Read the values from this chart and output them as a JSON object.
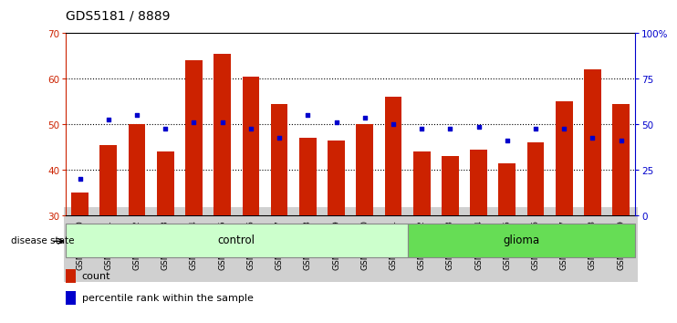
{
  "title": "GDS5181 / 8889",
  "samples": [
    "GSM769920",
    "GSM769921",
    "GSM769922",
    "GSM769923",
    "GSM769924",
    "GSM769925",
    "GSM769926",
    "GSM769927",
    "GSM769928",
    "GSM769929",
    "GSM769930",
    "GSM769931",
    "GSM769932",
    "GSM769933",
    "GSM769934",
    "GSM769935",
    "GSM769936",
    "GSM769937",
    "GSM769938",
    "GSM769939"
  ],
  "counts": [
    35,
    45.5,
    50,
    44,
    64,
    65.5,
    60.5,
    54.5,
    47,
    46.5,
    50,
    56,
    44,
    43,
    44.5,
    41.5,
    46,
    55,
    62,
    54.5
  ],
  "percentiles_left_scale": [
    38,
    51,
    52,
    49,
    50.5,
    50.5,
    49,
    47,
    52,
    50.5,
    51.5,
    50,
    49,
    49,
    49.5,
    46.5,
    49,
    49,
    47,
    46.5
  ],
  "bar_color": "#cc2200",
  "dot_color": "#0000cc",
  "control_count": 12,
  "glioma_count": 8,
  "control_label": "control",
  "glioma_label": "glioma",
  "disease_state_label": "disease state",
  "ylim_left": [
    30,
    70
  ],
  "ylim_right": [
    0,
    100
  ],
  "yticks_left": [
    30,
    40,
    50,
    60,
    70
  ],
  "yticks_right": [
    0,
    25,
    50,
    75,
    100
  ],
  "yticklabels_right": [
    "0",
    "25",
    "50",
    "75",
    "100%"
  ],
  "legend_count_label": "count",
  "legend_pct_label": "percentile rank within the sample",
  "bg_xticklabels": "#d0d0d0",
  "control_bg": "#ccffcc",
  "glioma_bg": "#66dd55",
  "title_fontsize": 10,
  "axis_tick_fontsize": 7.5,
  "xtick_fontsize": 6.5
}
